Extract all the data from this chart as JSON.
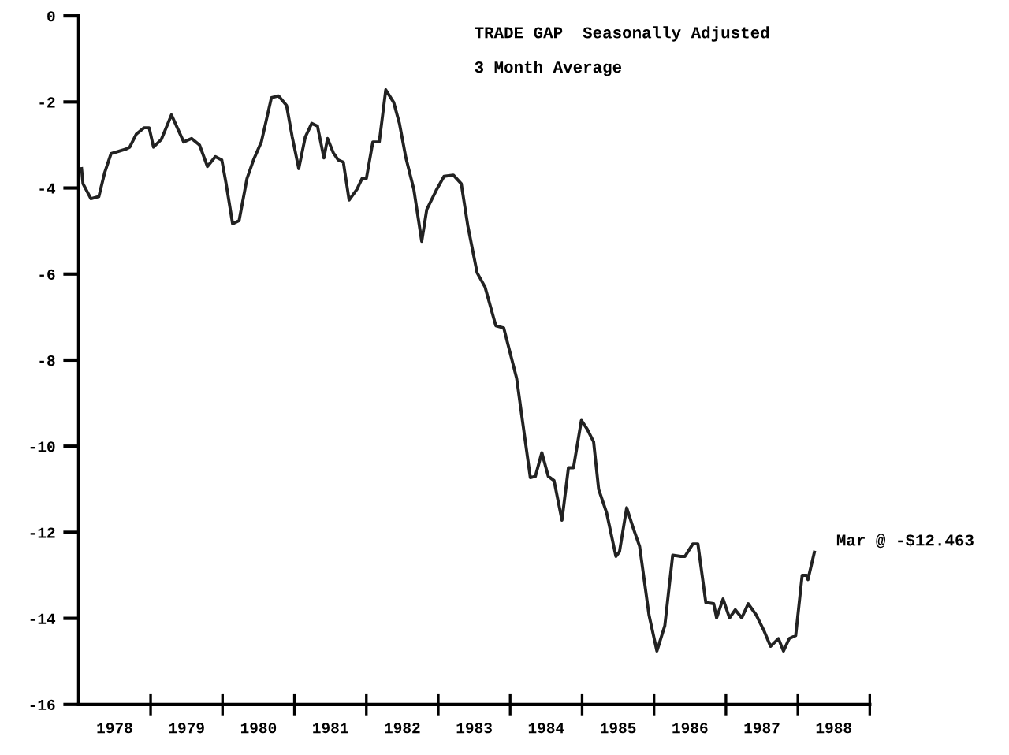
{
  "chart_data": {
    "type": "line",
    "title": "TRADE GAP  Seasonally Adjusted",
    "subtitle": "3 Month Average",
    "x": [
      1978.04,
      1978.06,
      1978.17,
      1978.28,
      1978.36,
      1978.45,
      1978.65,
      1978.71,
      1978.8,
      1978.91,
      1978.98,
      1979.04,
      1979.15,
      1979.29,
      1979.46,
      1979.57,
      1979.68,
      1979.79,
      1979.9,
      1979.99,
      1980.05,
      1980.14,
      1980.23,
      1980.34,
      1980.43,
      1980.54,
      1980.68,
      1980.78,
      1980.89,
      1980.97,
      1981.06,
      1981.15,
      1981.24,
      1981.32,
      1981.41,
      1981.46,
      1981.54,
      1981.61,
      1981.68,
      1981.76,
      1981.87,
      1981.94,
      1982.0,
      1982.09,
      1982.18,
      1982.27,
      1982.38,
      1982.46,
      1982.55,
      1982.66,
      1982.77,
      1982.84,
      1982.97,
      1983.08,
      1983.21,
      1983.32,
      1983.41,
      1983.54,
      1983.65,
      1983.8,
      1983.91,
      1984.09,
      1984.17,
      1984.28,
      1984.35,
      1984.44,
      1984.53,
      1984.61,
      1984.72,
      1984.81,
      1984.88,
      1984.99,
      1985.07,
      1985.16,
      1985.23,
      1985.34,
      1985.47,
      1985.52,
      1985.62,
      1985.71,
      1985.8,
      1985.93,
      1986.04,
      1986.15,
      1986.26,
      1986.37,
      1986.43,
      1986.54,
      1986.61,
      1986.72,
      1986.83,
      1986.87,
      1986.96,
      1987.05,
      1987.13,
      1987.22,
      1987.31,
      1987.42,
      1987.53,
      1987.62,
      1987.73,
      1987.8,
      1987.88,
      1987.97,
      1988.06,
      1988.12,
      1988.14,
      1988.23
    ],
    "series": [
      {
        "color": "#222222",
        "values": [
          -3.55,
          -3.9,
          -4.25,
          -4.2,
          -3.65,
          -3.2,
          -3.1,
          -3.05,
          -2.75,
          -2.6,
          -2.6,
          -3.05,
          -2.87,
          -2.3,
          -2.93,
          -2.85,
          -3.0,
          -3.5,
          -3.27,
          -3.35,
          -3.9,
          -4.83,
          -4.76,
          -3.78,
          -3.35,
          -2.93,
          -1.9,
          -1.86,
          -2.08,
          -2.82,
          -3.55,
          -2.82,
          -2.5,
          -2.56,
          -3.3,
          -2.85,
          -3.18,
          -3.35,
          -3.4,
          -4.28,
          -4.03,
          -3.78,
          -3.78,
          -2.93,
          -2.93,
          -1.72,
          -2.01,
          -2.5,
          -3.3,
          -4.03,
          -5.24,
          -4.5,
          -4.06,
          -3.73,
          -3.7,
          -3.9,
          -4.87,
          -5.97,
          -6.3,
          -7.2,
          -7.25,
          -8.42,
          -9.4,
          -10.73,
          -10.7,
          -10.15,
          -10.7,
          -10.8,
          -11.72,
          -10.5,
          -10.5,
          -9.4,
          -9.6,
          -9.9,
          -11.0,
          -11.54,
          -12.56,
          -12.45,
          -11.43,
          -11.9,
          -12.33,
          -13.92,
          -14.76,
          -14.17,
          -12.53,
          -12.56,
          -12.56,
          -12.27,
          -12.27,
          -13.63,
          -13.66,
          -13.99,
          -13.55,
          -13.99,
          -13.8,
          -13.99,
          -13.66,
          -13.92,
          -14.29,
          -14.65,
          -14.47,
          -14.76,
          -14.47,
          -14.4,
          -13.0,
          -13.0,
          -13.1,
          -12.463
        ]
      }
    ],
    "xlim": [
      1978,
      1989
    ],
    "xticks": [
      {
        "value": 1979,
        "label": null
      },
      {
        "value": 1980,
        "label": null
      },
      {
        "value": 1981,
        "label": null
      },
      {
        "value": 1982,
        "label": null
      },
      {
        "value": 1983,
        "label": null
      },
      {
        "value": 1984,
        "label": null
      },
      {
        "value": 1985,
        "label": null
      },
      {
        "value": 1986,
        "label": null
      },
      {
        "value": 1987,
        "label": null
      },
      {
        "value": 1988,
        "label": null
      },
      {
        "value": 1989,
        "label": null
      },
      {
        "value": 1978.5,
        "label": "1978"
      },
      {
        "value": 1979.5,
        "label": "1979"
      },
      {
        "value": 1980.5,
        "label": "1980"
      },
      {
        "value": 1981.5,
        "label": "1981"
      },
      {
        "value": 1982.5,
        "label": "1982"
      },
      {
        "value": 1983.5,
        "label": "1983"
      },
      {
        "value": 1984.5,
        "label": "1984"
      },
      {
        "value": 1985.5,
        "label": "1985"
      },
      {
        "value": 1986.5,
        "label": "1986"
      },
      {
        "value": 1987.5,
        "label": "1987"
      },
      {
        "value": 1988.5,
        "label": "1988"
      }
    ],
    "ylim": [
      -16,
      0
    ],
    "yticks": [
      0,
      -2,
      -4,
      -6,
      -8,
      -10,
      -12,
      -14,
      -16
    ],
    "annotations": [
      {
        "text": "Mar @ -$12.463",
        "x": 1988.23,
        "y": -12.463
      }
    ],
    "grid": false,
    "legend": false,
    "line_style": "solid",
    "marker": "none"
  }
}
